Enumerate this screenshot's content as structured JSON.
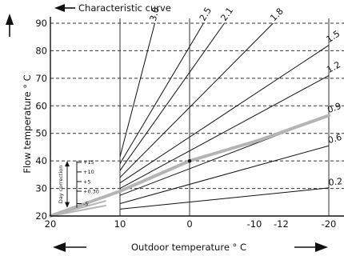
{
  "chart_data": {
    "type": "line",
    "title": "Characteristic curve",
    "xlabel": "Outdoor temperature ° C",
    "ylabel": "Flow temperature ° C",
    "xlim": [
      20,
      -20
    ],
    "ylim": [
      20,
      90
    ],
    "x_ticks": [
      {
        "value": 20,
        "label": "20"
      },
      {
        "value": 10,
        "label": "10"
      },
      {
        "value": 0,
        "label": "0"
      },
      {
        "value": -10,
        "label": "-10"
      },
      {
        "value": -12,
        "label": "-12"
      },
      {
        "value": -20,
        "label": "-20"
      }
    ],
    "y_ticks": [
      {
        "value": 20,
        "label": "20"
      },
      {
        "value": 30,
        "label": "30"
      },
      {
        "value": 40,
        "label": "40"
      },
      {
        "value": 50,
        "label": "50"
      },
      {
        "value": 60,
        "label": "60"
      },
      {
        "value": 70,
        "label": "70"
      },
      {
        "value": 80,
        "label": "80"
      },
      {
        "value": 90,
        "label": "90"
      }
    ],
    "grid": {
      "horizontal": "dashed",
      "vertical": "solid"
    },
    "series": [
      {
        "name": "0.2",
        "points": [
          [
            10,
            22.5
          ],
          [
            -20,
            30.2
          ]
        ]
      },
      {
        "name": "0.6",
        "points": [
          [
            10,
            24.5
          ],
          [
            -20,
            45.5
          ]
        ]
      },
      {
        "name": "0.9",
        "points": [
          [
            10,
            27.5
          ],
          [
            -20,
            56.5
          ]
        ]
      },
      {
        "name": "1.2",
        "points": [
          [
            10,
            30
          ],
          [
            -20,
            71
          ]
        ]
      },
      {
        "name": "1.5",
        "points": [
          [
            10,
            32
          ],
          [
            -20,
            82
          ]
        ]
      },
      {
        "name": "1.8",
        "points": [
          [
            10,
            34
          ],
          [
            -12,
            90
          ]
        ]
      },
      {
        "name": "2.1",
        "points": [
          [
            10,
            36.5
          ],
          [
            -5,
            90
          ]
        ]
      },
      {
        "name": "2.5",
        "points": [
          [
            10,
            39
          ],
          [
            -2,
            90
          ]
        ]
      },
      {
        "name": "3.0",
        "points": [
          [
            10,
            41.5
          ],
          [
            5,
            90
          ]
        ]
      },
      {
        "name": "",
        "style": "grey",
        "points": [
          [
            12,
            25.5
          ],
          [
            20,
            20
          ]
        ]
      },
      {
        "name": "",
        "style": "grey",
        "points": [
          [
            12,
            23.8
          ],
          [
            20,
            20
          ]
        ]
      }
    ],
    "highlight_curve": {
      "points": [
        [
          20,
          20
        ],
        [
          10,
          29
        ],
        [
          0,
          40
        ],
        [
          -10,
          47.5
        ],
        [
          -20,
          56.5
        ]
      ],
      "marker": [
        0,
        40
      ]
    },
    "day_correction": {
      "label": "Day correction",
      "values": [
        {
          "value": "+15",
          "y": 39.5
        },
        {
          "value": "+10",
          "y": 36
        },
        {
          "value": "+5",
          "y": 32.5
        },
        {
          "value": "+0.30",
          "y": 29
        },
        {
          "value": "-5",
          "y": 24.5
        }
      ],
      "range": [
        40,
        23
      ]
    }
  },
  "colors": {
    "axis": "#111111",
    "grid": "#333333",
    "curve": "#111111",
    "highlight": "#b4b4b4"
  }
}
